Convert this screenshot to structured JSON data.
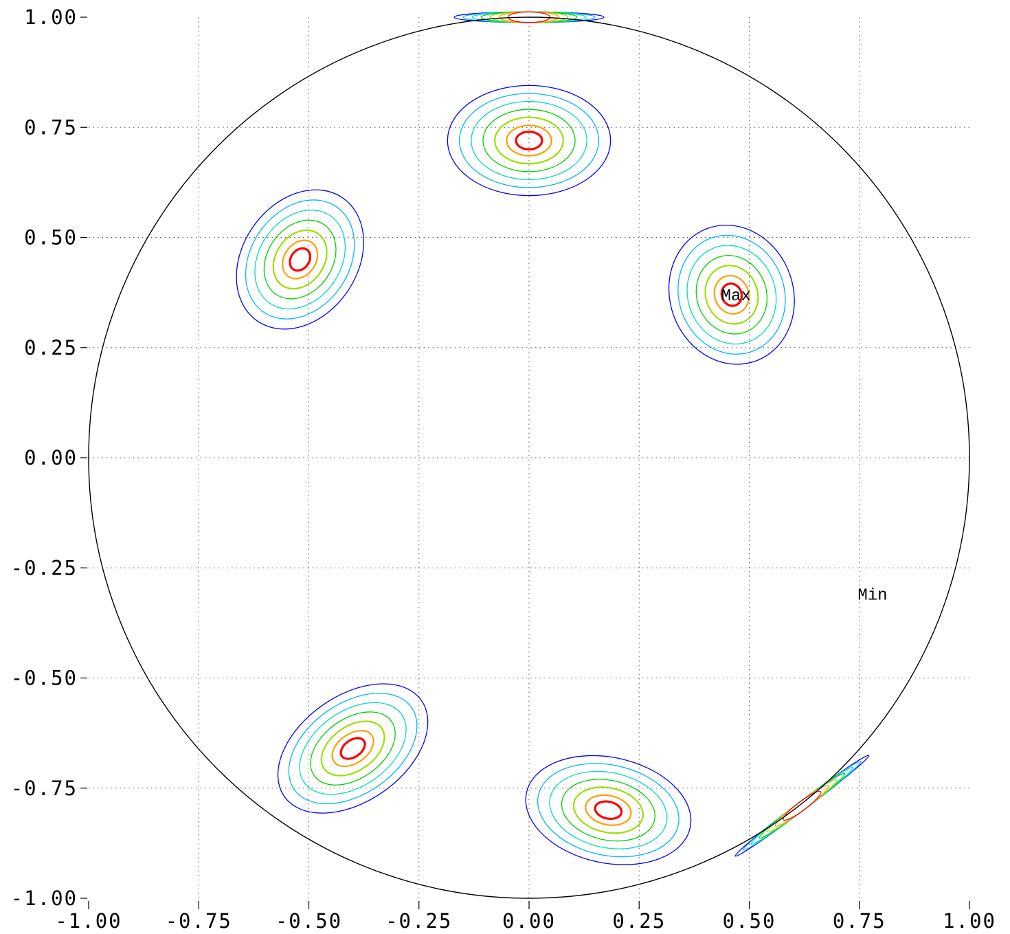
{
  "chart_data": {
    "type": "contour",
    "title": "",
    "xlabel": "",
    "ylabel": "",
    "xlim": [
      -1.0,
      1.0
    ],
    "ylim": [
      -1.0,
      1.0
    ],
    "x_ticks": [
      "-1.00",
      "-0.75",
      "-0.50",
      "-0.25",
      "0.00",
      "0.25",
      "0.50",
      "0.75",
      "1.00"
    ],
    "y_ticks": [
      "1.00",
      "0.75",
      "0.50",
      "0.25",
      "0.00",
      "-0.25",
      "-0.50",
      "-0.75",
      "-1.00"
    ],
    "grid": true,
    "boundary": "unit circle",
    "contour_level_colors": [
      "#0000ff",
      "#00b4ff",
      "#00e0b0",
      "#00d000",
      "#9be000",
      "#ffa000",
      "#ff0000"
    ],
    "poles": [
      {
        "x": 0.0,
        "y": 0.72,
        "rx": 0.185,
        "ry": 0.125,
        "angle": 0
      },
      {
        "x": -0.52,
        "y": 0.45,
        "rx": 0.17,
        "ry": 0.13,
        "angle": 55
      },
      {
        "x": 0.46,
        "y": 0.37,
        "rx": 0.16,
        "ry": 0.14,
        "angle": -70
      },
      {
        "x": -0.4,
        "y": -0.66,
        "rx": 0.19,
        "ry": 0.12,
        "angle": 35
      },
      {
        "x": 0.18,
        "y": -0.8,
        "rx": 0.19,
        "ry": 0.12,
        "angle": -12
      },
      {
        "x": 0.0,
        "y": 1.0,
        "rx": 0.17,
        "ry": 0.012,
        "angle": 0,
        "edge": true
      },
      {
        "x": 0.62,
        "y": -0.79,
        "rx": 0.19,
        "ry": 0.01,
        "angle": 37,
        "edge": true
      }
    ],
    "annotations": [
      {
        "text": "Max",
        "x": 0.47,
        "y": 0.37
      },
      {
        "text": "Min",
        "x": 0.78,
        "y": -0.31
      }
    ]
  }
}
